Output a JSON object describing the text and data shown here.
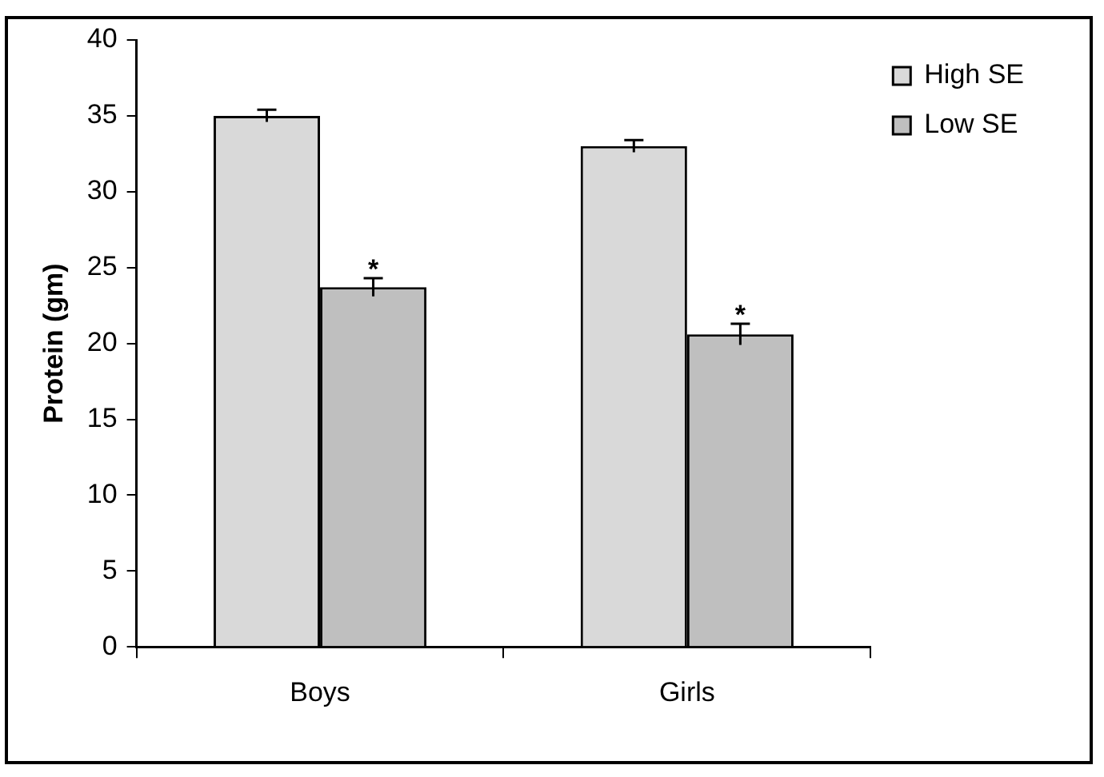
{
  "chart_data": {
    "type": "bar",
    "ylabel": "Protein (gm)",
    "categories": [
      "Boys",
      "Girls"
    ],
    "series": [
      {
        "name": "High SE",
        "color": "#d9d9d9",
        "values": [
          35.0,
          33.0
        ],
        "errors": [
          0.4,
          0.4
        ]
      },
      {
        "name": "Low SE",
        "color": "#bfbfbf",
        "values": [
          23.7,
          20.6
        ],
        "errors": [
          0.6,
          0.7
        ]
      }
    ],
    "annotations": [
      {
        "text": "*",
        "x": "Boys",
        "y": 24.3
      },
      {
        "text": "*",
        "x": "Girls",
        "y": 21.3
      }
    ],
    "ylim": [
      0,
      40
    ],
    "yticks": [
      0,
      5,
      10,
      15,
      20,
      25,
      30,
      35,
      40
    ],
    "grid": false,
    "legend": "top right"
  }
}
